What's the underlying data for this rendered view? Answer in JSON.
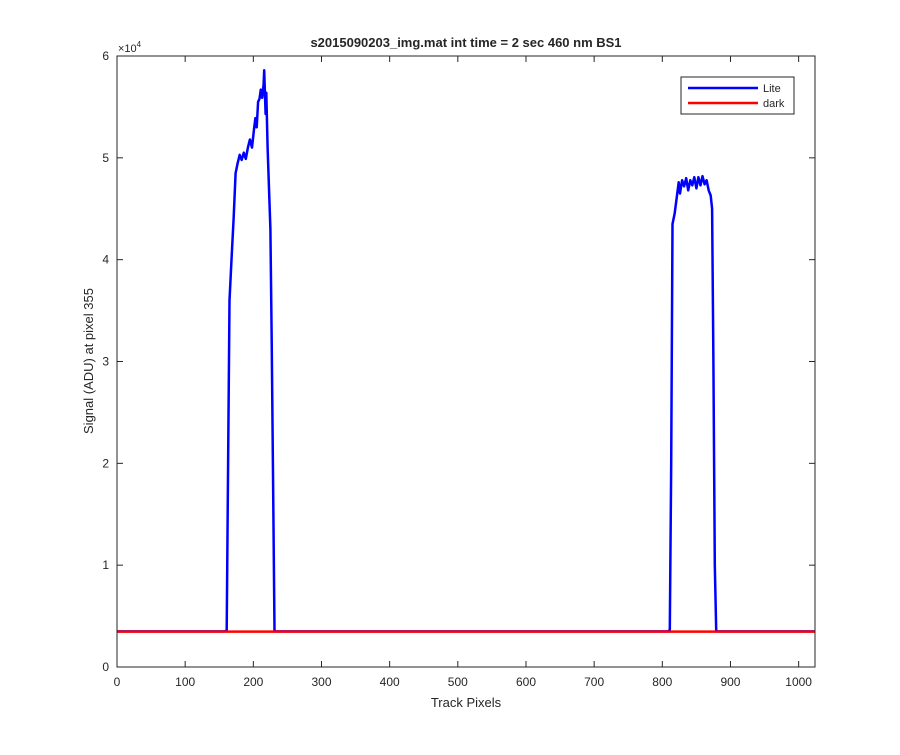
{
  "chart_data": {
    "type": "line",
    "title": "s2015090203_img.mat int time = 2 sec  460 nm BS1",
    "xlabel": "Track Pixels",
    "ylabel": "Signal (ADU) at pixel 355",
    "xlim": [
      0,
      1024
    ],
    "ylim": [
      0,
      60000
    ],
    "y_exponent_label": "×10",
    "y_exponent_power": "4",
    "xticks": [
      0,
      100,
      200,
      300,
      400,
      500,
      600,
      700,
      800,
      900,
      1000
    ],
    "yticks": [
      0,
      10000,
      20000,
      30000,
      40000,
      50000,
      60000
    ],
    "ytick_labels": [
      "0",
      "1",
      "2",
      "3",
      "4",
      "5",
      "6"
    ],
    "grid": false,
    "legend_position": "top-right",
    "series": [
      {
        "name": "Lite",
        "color": "#0000ff",
        "points": [
          [
            0,
            3500
          ],
          [
            158,
            3500
          ],
          [
            161,
            3600
          ],
          [
            163,
            20000
          ],
          [
            165,
            36000
          ],
          [
            168,
            40000
          ],
          [
            171,
            44000
          ],
          [
            174,
            48500
          ],
          [
            177,
            49500
          ],
          [
            180,
            50300
          ],
          [
            183,
            49800
          ],
          [
            186,
            50500
          ],
          [
            189,
            49900
          ],
          [
            192,
            51000
          ],
          [
            195,
            51800
          ],
          [
            198,
            51000
          ],
          [
            201,
            52800
          ],
          [
            203,
            53900
          ],
          [
            205,
            53000
          ],
          [
            207,
            55500
          ],
          [
            209,
            55800
          ],
          [
            211,
            56700
          ],
          [
            213,
            55900
          ],
          [
            215,
            57200
          ],
          [
            216,
            58600
          ],
          [
            218,
            54300
          ],
          [
            219,
            56400
          ],
          [
            221,
            51000
          ],
          [
            223,
            47000
          ],
          [
            225,
            43000
          ],
          [
            227,
            32000
          ],
          [
            229,
            18000
          ],
          [
            231,
            3600
          ],
          [
            233,
            3500
          ],
          [
            808,
            3500
          ],
          [
            811,
            3600
          ],
          [
            813,
            20000
          ],
          [
            815,
            43500
          ],
          [
            818,
            44500
          ],
          [
            821,
            46000
          ],
          [
            824,
            47600
          ],
          [
            826,
            46500
          ],
          [
            829,
            47800
          ],
          [
            832,
            47200
          ],
          [
            835,
            48000
          ],
          [
            838,
            46800
          ],
          [
            841,
            47800
          ],
          [
            844,
            47300
          ],
          [
            847,
            48100
          ],
          [
            850,
            47000
          ],
          [
            853,
            48100
          ],
          [
            856,
            47300
          ],
          [
            859,
            48200
          ],
          [
            862,
            47400
          ],
          [
            865,
            47800
          ],
          [
            868,
            46800
          ],
          [
            871,
            46300
          ],
          [
            873,
            45000
          ],
          [
            875,
            30000
          ],
          [
            877,
            10000
          ],
          [
            879,
            3600
          ],
          [
            881,
            3500
          ],
          [
            1024,
            3500
          ]
        ]
      },
      {
        "name": "dark",
        "color": "#ff0000",
        "points": [
          [
            0,
            3480
          ],
          [
            1024,
            3480
          ]
        ]
      }
    ]
  }
}
